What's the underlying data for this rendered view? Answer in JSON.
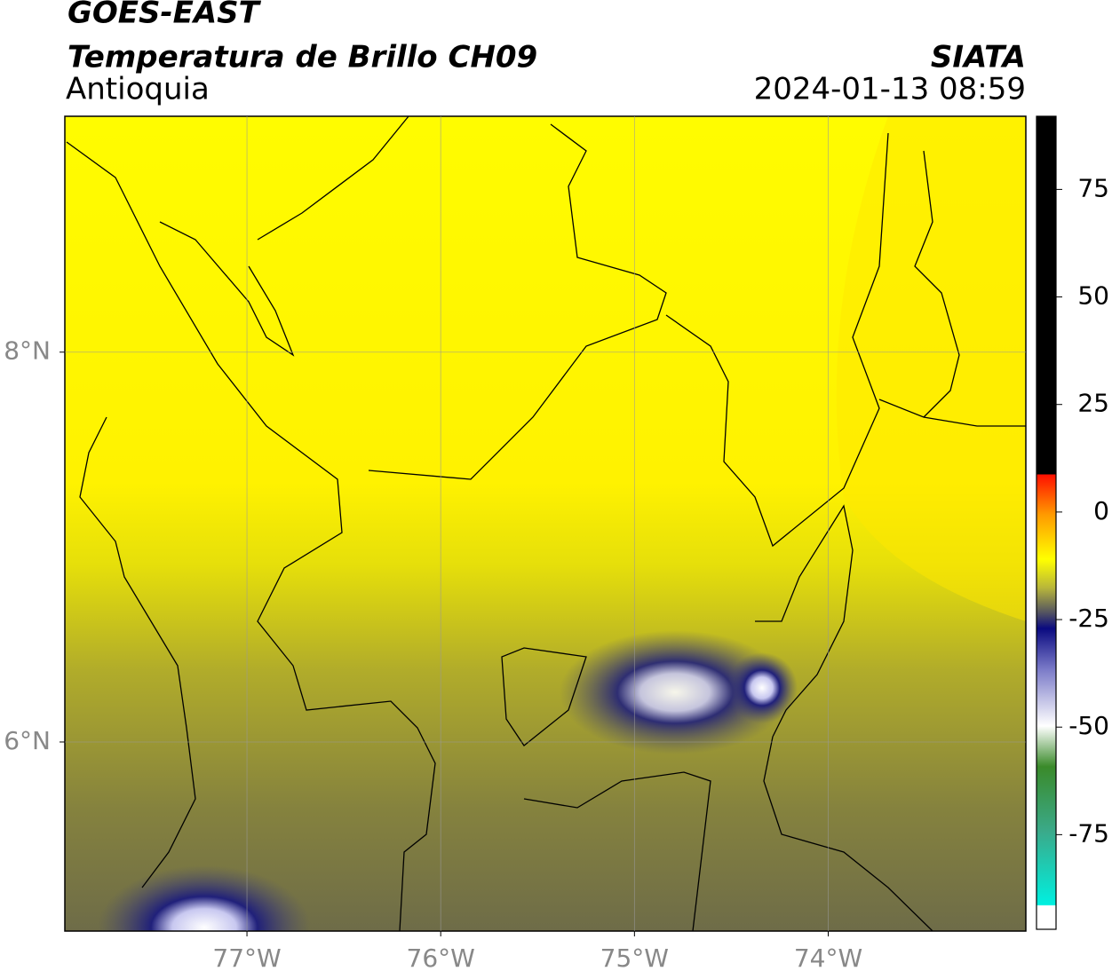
{
  "chart_data": {
    "type": "map",
    "title": "GOES-EAST",
    "subtitle": "Temperatura de Brillo CH09",
    "region": "Antioquia",
    "source": "SIATA",
    "timestamp": "2024-01-13 08:59",
    "xlim": [
      -77.94,
      -72.98
    ],
    "ylim": [
      5.03,
      9.21
    ],
    "xticks": [
      {
        "value": -77,
        "label": "77°W"
      },
      {
        "value": -76,
        "label": "76°W"
      },
      {
        "value": -75,
        "label": "75°W"
      },
      {
        "value": -74,
        "label": "74°W"
      }
    ],
    "yticks": [
      {
        "value": 6,
        "label": "6°N"
      },
      {
        "value": 8,
        "label": "8°N"
      }
    ],
    "grid": true,
    "colorbar": {
      "lim": [
        -97,
        92
      ],
      "ticks": [
        75,
        50,
        25,
        0,
        -25,
        -50,
        -75
      ]
    }
  }
}
